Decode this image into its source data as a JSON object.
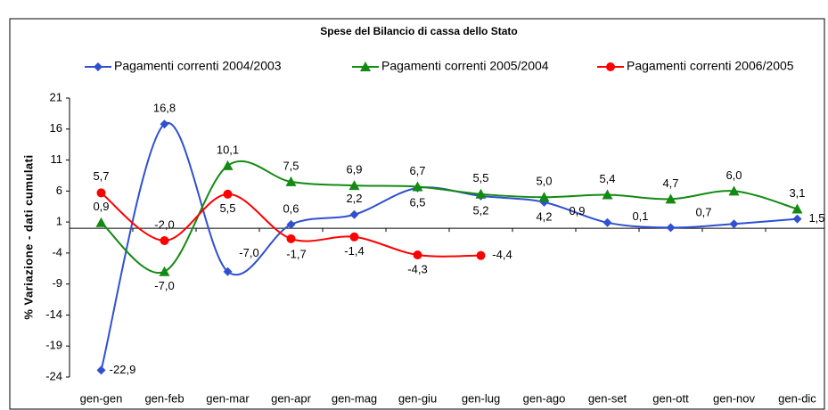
{
  "chart_data": {
    "type": "line",
    "title": "Spese del Bilancio di cassa dello Stato",
    "y_label": "% Variazione - dati cumulati",
    "categories": [
      "gen-gen",
      "gen-feb",
      "gen-mar",
      "gen-apr",
      "gen-mag",
      "gen-giu",
      "gen-lug",
      "gen-ago",
      "gen-set",
      "gen-ott",
      "gen-nov",
      "gen-dic"
    ],
    "ylim": [
      -24,
      21
    ],
    "yticks": [
      -24,
      -19,
      -14,
      -9,
      -4,
      1,
      6,
      11,
      16,
      21
    ],
    "legend": "top",
    "series": [
      {
        "name": "Pagamenti correnti 2004/2003",
        "color": "#3050d0",
        "marker": "diamond",
        "values": [
          -22.9,
          16.8,
          -7.0,
          0.6,
          2.2,
          6.5,
          5.2,
          4.2,
          0.9,
          0.1,
          0.7,
          1.5
        ],
        "value_labels": [
          "-22,9",
          "16,8",
          "-7,0",
          "0,6",
          "2,2",
          "6,5",
          "5,2",
          "4,2",
          "0,9",
          "0,1",
          "0,7",
          "1,5"
        ]
      },
      {
        "name": "Pagamenti correnti 2005/2004",
        "color": "#138a13",
        "marker": "triangle",
        "values": [
          0.9,
          -7.0,
          10.1,
          7.5,
          6.9,
          6.7,
          5.5,
          5.0,
          5.4,
          4.7,
          6.0,
          3.1
        ],
        "value_labels": [
          "0,9",
          "-7,0",
          "10,1",
          "7,5",
          "6,9",
          "6,7",
          "5,5",
          "5,0",
          "5,4",
          "4,7",
          "6,0",
          "3,1"
        ]
      },
      {
        "name": "Pagamenti correnti 2006/2005",
        "color": "#ff0000",
        "marker": "circle",
        "values": [
          5.7,
          -2.0,
          5.5,
          -1.7,
          -1.4,
          -4.3,
          -4.4,
          null,
          null,
          null,
          null,
          null
        ],
        "value_labels": [
          "5,7",
          "-2,0",
          "5,5",
          "-1,7",
          "-1,4",
          "-4,3",
          "-4,4",
          null,
          null,
          null,
          null,
          null
        ]
      }
    ]
  }
}
